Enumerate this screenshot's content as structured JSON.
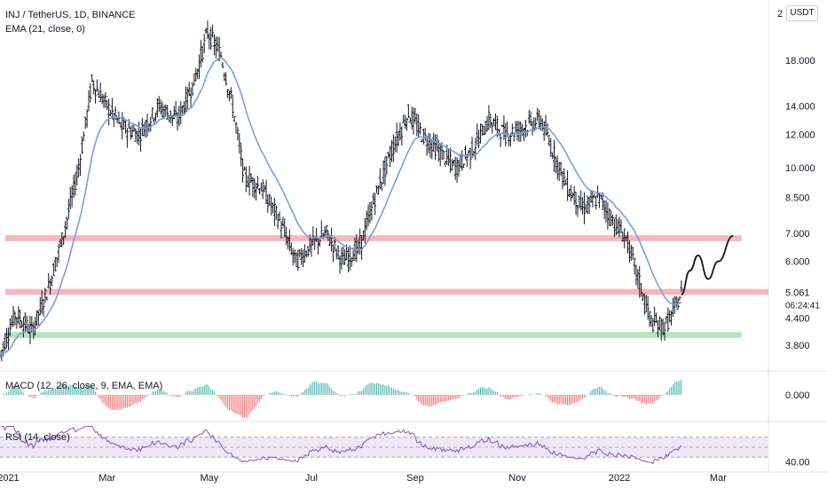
{
  "header": {
    "title": "INJ / TetherUS, 1D, BINANCE",
    "overlay": "EMA (21, close, 0)",
    "macd": "MACD (12, 26, close, 9, EMA, EMA)",
    "rsi": "RSI (14, close)",
    "currency_badge": "USDT",
    "clipped_top_label": "2"
  },
  "chart_data": {
    "type": "candlestick",
    "symbol": "INJ / TetherUS",
    "interval": "1D",
    "exchange": "BINANCE",
    "y_scale": "log",
    "ylim": [
      3.3,
      25
    ],
    "y_ticks": [
      {
        "value": 18,
        "label": "18.000"
      },
      {
        "value": 14,
        "label": "14.000"
      },
      {
        "value": 12,
        "label": "12.000"
      },
      {
        "value": 10,
        "label": "10.000"
      },
      {
        "value": 8.5,
        "label": "8.500"
      },
      {
        "value": 7,
        "label": "7.000"
      },
      {
        "value": 6,
        "label": "6.000"
      },
      {
        "value": 4.4,
        "label": "4.400"
      },
      {
        "value": 3.8,
        "label": "3.800"
      }
    ],
    "last_price": {
      "value": 5.061,
      "label": "5.061",
      "countdown": "06:24:41",
      "color": "#26a69a"
    },
    "x_range": [
      "2020-12-27",
      "2022-03-31"
    ],
    "x_labels": [
      {
        "date": "2021-01-01",
        "label": "2021"
      },
      {
        "date": "2021-03-01",
        "label": "Mar"
      },
      {
        "date": "2021-05-01",
        "label": "May"
      },
      {
        "date": "2021-07-01",
        "label": "Jul"
      },
      {
        "date": "2021-09-01",
        "label": "Sep"
      },
      {
        "date": "2021-11-01",
        "label": "Nov"
      },
      {
        "date": "2022-01-01",
        "label": "2022"
      },
      {
        "date": "2022-03-01",
        "label": "Mar"
      }
    ],
    "price_path": [
      [
        "2020-12-27",
        3.6
      ],
      [
        "2021-01-05",
        4.5
      ],
      [
        "2021-01-15",
        4.1
      ],
      [
        "2021-01-25",
        5.2
      ],
      [
        "2021-02-03",
        7.0
      ],
      [
        "2021-02-12",
        10.0
      ],
      [
        "2021-02-20",
        16.0
      ],
      [
        "2021-03-01",
        14.0
      ],
      [
        "2021-03-10",
        12.5
      ],
      [
        "2021-03-20",
        12.0
      ],
      [
        "2021-04-01",
        14.0
      ],
      [
        "2021-04-12",
        13.0
      ],
      [
        "2021-04-22",
        16.0
      ],
      [
        "2021-04-30",
        21.0
      ],
      [
        "2021-05-08",
        18.5
      ],
      [
        "2021-05-15",
        14.0
      ],
      [
        "2021-05-22",
        9.5
      ],
      [
        "2021-06-01",
        9.0
      ],
      [
        "2021-06-12",
        7.5
      ],
      [
        "2021-06-22",
        6.0
      ],
      [
        "2021-06-30",
        6.5
      ],
      [
        "2021-07-10",
        7.0
      ],
      [
        "2021-07-20",
        6.0
      ],
      [
        "2021-07-30",
        6.5
      ],
      [
        "2021-08-08",
        8.5
      ],
      [
        "2021-08-18",
        11.0
      ],
      [
        "2021-08-28",
        13.5
      ],
      [
        "2021-09-05",
        12.0
      ],
      [
        "2021-09-15",
        11.0
      ],
      [
        "2021-09-25",
        10.0
      ],
      [
        "2021-10-05",
        11.0
      ],
      [
        "2021-10-15",
        13.0
      ],
      [
        "2021-10-25",
        12.0
      ],
      [
        "2021-11-05",
        12.5
      ],
      [
        "2021-11-15",
        13.0
      ],
      [
        "2021-11-22",
        11.0
      ],
      [
        "2021-12-01",
        9.0
      ],
      [
        "2021-12-10",
        8.0
      ],
      [
        "2021-12-20",
        8.5
      ],
      [
        "2021-12-28",
        7.5
      ],
      [
        "2022-01-05",
        6.8
      ],
      [
        "2022-01-12",
        5.5
      ],
      [
        "2022-01-20",
        4.3
      ],
      [
        "2022-01-28",
        4.2
      ],
      [
        "2022-02-03",
        4.6
      ],
      [
        "2022-02-07",
        5.06
      ]
    ],
    "horizontal_zones": [
      {
        "from": 6.7,
        "to": 6.92,
        "color": "#f7a8b0",
        "end": "2022-03-15"
      },
      {
        "from": 5.0,
        "to": 5.16,
        "color": "#f7a8b0",
        "end": "2022-03-31"
      },
      {
        "from": 3.95,
        "to": 4.08,
        "color": "#a9dfb0",
        "end": "2022-03-15"
      }
    ],
    "projection_path": [
      [
        "2022-02-07",
        5.0
      ],
      [
        "2022-02-12",
        5.7
      ],
      [
        "2022-02-17",
        6.2
      ],
      [
        "2022-02-23",
        5.45
      ],
      [
        "2022-03-01",
        6.0
      ],
      [
        "2022-03-10",
        6.9
      ]
    ],
    "macd": {
      "y_tick": {
        "value": 0,
        "label": "0.000"
      }
    },
    "rsi": {
      "y_tick": {
        "value": 40,
        "label": "40.00"
      },
      "upper_band": 70,
      "lower_band": 30
    },
    "colors": {
      "up": "#26a69a",
      "down": "#ef5350",
      "ema": "#7a9fe0",
      "rsi_line": "#7e57c2",
      "rsi_band": "#ede7f6",
      "candle": "#131722"
    }
  }
}
